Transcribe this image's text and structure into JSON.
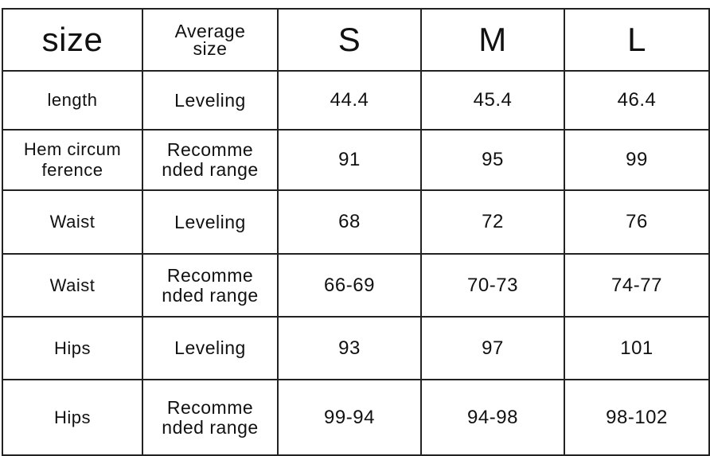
{
  "table": {
    "header": [
      "size",
      [
        "Average",
        "size"
      ],
      "S",
      "M",
      "L"
    ],
    "rows": [
      [
        "length",
        [
          "Leveling"
        ],
        "44.4",
        "45.4",
        "46.4"
      ],
      [
        [
          "Hem circum",
          "ference"
        ],
        [
          "Recomme",
          "nded range"
        ],
        "91",
        "95",
        "99"
      ],
      [
        "Waist",
        [
          "Leveling"
        ],
        "68",
        "72",
        "76"
      ],
      [
        "Waist",
        [
          "Recomme",
          "nded range"
        ],
        "66-69",
        "70-73",
        "74-77"
      ],
      [
        "Hips",
        [
          "Leveling"
        ],
        "93",
        "97",
        "101"
      ],
      [
        "Hips",
        [
          "Recomme",
          "nded range"
        ],
        "99-94",
        "94-98",
        "98-102"
      ]
    ]
  }
}
